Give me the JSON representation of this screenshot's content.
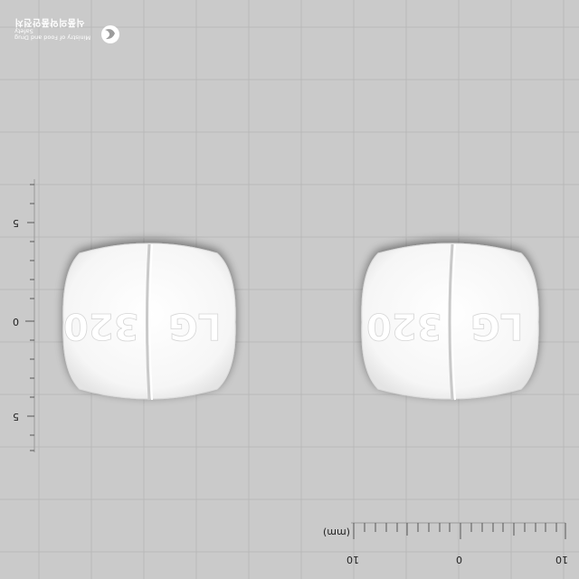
{
  "watermark": {
    "english": "Ministry of Food and Drug Safety",
    "korean": "식품의약품안전처",
    "emblem_icon": "mfds-emblem-icon"
  },
  "ruler": {
    "unit_label": "(mm)",
    "horizontal_labels": [
      "10",
      "0",
      "10"
    ],
    "vertical_labels": [
      "5",
      "0",
      "5"
    ]
  },
  "pills": [
    {
      "imprint_left": "LG",
      "imprint_right": "320",
      "color": "#ffffff"
    },
    {
      "imprint_left": "LG",
      "imprint_right": "320",
      "color": "#ffffff"
    }
  ],
  "colors": {
    "background": "#cacaca",
    "grid": "#b9b9b9",
    "pill": "#ffffff"
  }
}
